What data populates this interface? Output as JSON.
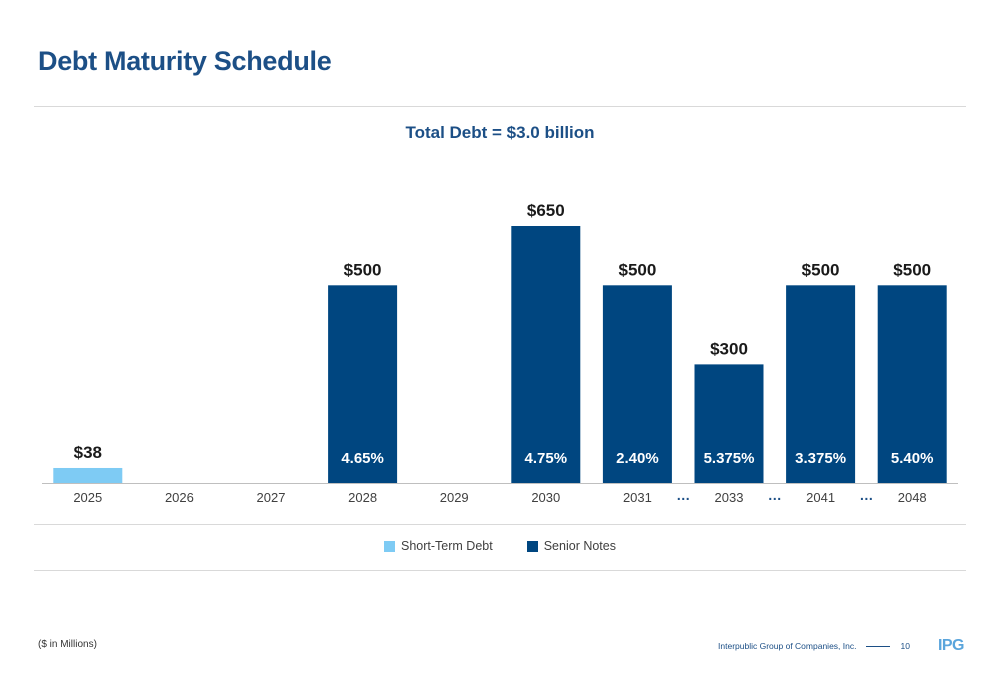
{
  "page": {
    "title": "Debt Maturity Schedule",
    "footnote": "($ in Millions)",
    "footer_company": "Interpublic Group of Companies, Inc.",
    "page_number": "10",
    "logo_text": "IPG"
  },
  "chart_data": {
    "type": "bar",
    "title": "Total Debt = $3.0 billion",
    "categories": [
      "2025",
      "2026",
      "2027",
      "2028",
      "2029",
      "2030",
      "2031",
      "2033",
      "2041",
      "2048"
    ],
    "axis_breaks_after": [
      "2031",
      "2033",
      "2041"
    ],
    "break_marker": "…",
    "series": [
      {
        "name": "Short-Term Debt",
        "color": "#7ecbf4",
        "values": [
          38,
          null,
          null,
          null,
          null,
          null,
          null,
          null,
          null,
          null
        ],
        "value_labels": [
          "$38",
          null,
          null,
          null,
          null,
          null,
          null,
          null,
          null,
          null
        ],
        "rate_labels": [
          null,
          null,
          null,
          null,
          null,
          null,
          null,
          null,
          null,
          null
        ]
      },
      {
        "name": "Senior Notes",
        "color": "#004680",
        "values": [
          null,
          null,
          null,
          500,
          null,
          650,
          500,
          300,
          500,
          500
        ],
        "value_labels": [
          null,
          null,
          null,
          "$500",
          null,
          "$650",
          "$500",
          "$300",
          "$500",
          "$500"
        ],
        "rate_labels": [
          null,
          null,
          null,
          "4.65%",
          null,
          "4.75%",
          "2.40%",
          "5.375%",
          "3.375%",
          "5.40%"
        ]
      }
    ],
    "ylim": [
      0,
      650
    ],
    "grid": false,
    "legend_position": "bottom"
  }
}
